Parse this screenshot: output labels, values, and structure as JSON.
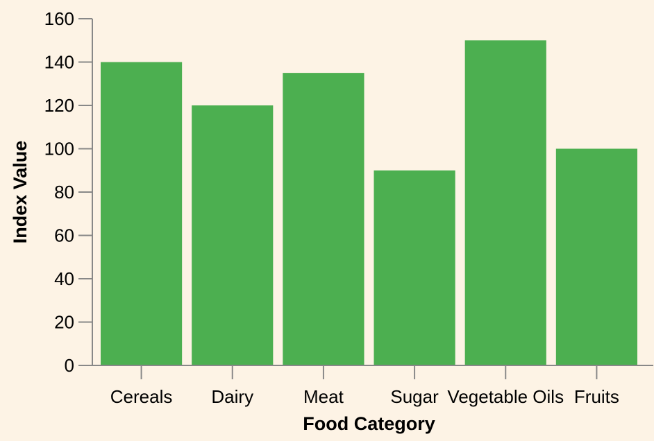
{
  "chart_data": {
    "type": "bar",
    "categories": [
      "Cereals",
      "Dairy",
      "Meat",
      "Sugar",
      "Vegetable Oils",
      "Fruits"
    ],
    "values": [
      140,
      120,
      135,
      90,
      150,
      100
    ],
    "title": "",
    "xlabel": "Food Category",
    "ylabel": "Index Value",
    "ylim": [
      0,
      160
    ],
    "yticks": [
      0,
      20,
      40,
      60,
      80,
      100,
      120,
      140,
      160
    ],
    "grid": false,
    "bar_color": "#4caf50",
    "background_color": "#fdf3e5"
  }
}
